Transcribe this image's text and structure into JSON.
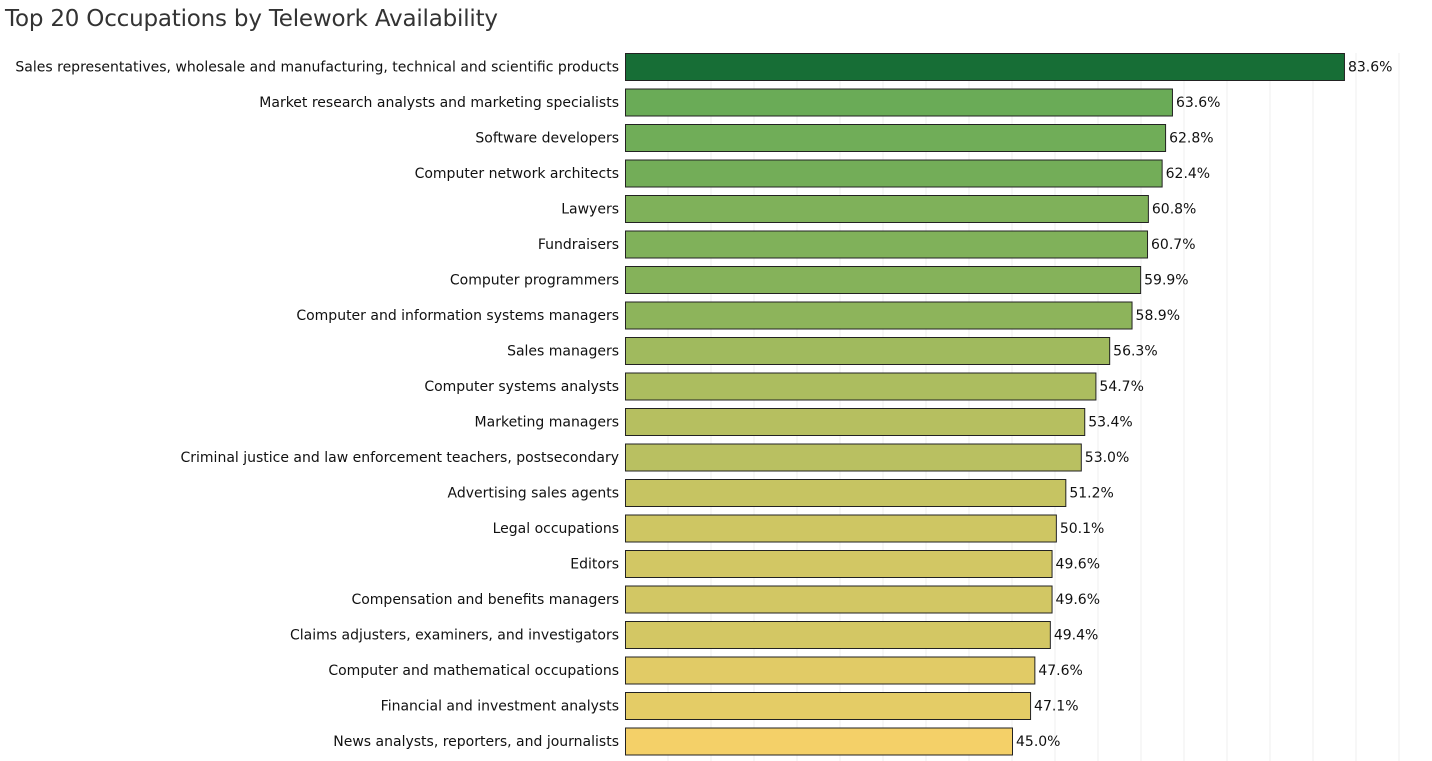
{
  "chart_data": {
    "type": "bar",
    "orientation": "horizontal",
    "title": "Top 20 Occupations by Telework Availability",
    "xlabel": "",
    "ylabel": "",
    "grid": true,
    "value_suffix": "%",
    "categories": [
      "Sales representatives, wholesale and manufacturing, technical and scientific products",
      "Market research analysts and marketing specialists",
      "Software developers",
      "Computer network architects",
      "Lawyers",
      "Fundraisers",
      "Computer programmers",
      "Computer and information systems managers",
      "Sales managers",
      "Computer systems analysts",
      "Marketing managers",
      "Criminal justice and law enforcement teachers, postsecondary",
      "Advertising sales agents",
      "Legal occupations",
      "Editors",
      "Compensation and benefits managers",
      "Claims adjusters, examiners, and investigators",
      "Computer and mathematical occupations",
      "Financial and investment analysts",
      "News analysts, reporters, and journalists"
    ],
    "values": [
      83.6,
      63.6,
      62.8,
      62.4,
      60.8,
      60.7,
      59.9,
      58.9,
      56.3,
      54.7,
      53.4,
      53.0,
      51.2,
      50.1,
      49.6,
      49.6,
      49.4,
      47.6,
      47.1,
      45.0
    ],
    "value_labels": [
      "83.6%",
      "63.6%",
      "62.8%",
      "62.4%",
      "60.8%",
      "60.7%",
      "59.9%",
      "58.9%",
      "56.3%",
      "54.7%",
      "53.4%",
      "53.0%",
      "51.2%",
      "50.1%",
      "49.6%",
      "49.6%",
      "49.4%",
      "47.6%",
      "47.1%",
      "45.0%"
    ],
    "xlim": [
      0,
      90
    ],
    "colors": {
      "high": "#176e36",
      "mid": "#6aab57",
      "low": "#f4d068"
    }
  }
}
